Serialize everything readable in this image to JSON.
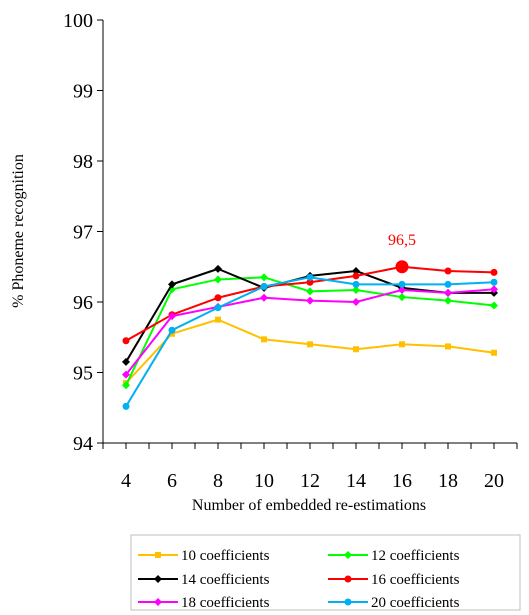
{
  "chart_data": {
    "type": "line",
    "title": "",
    "xlabel": "Number of embedded re-estimations",
    "ylabel": "% Phoneme recognition",
    "x": [
      4,
      6,
      8,
      10,
      12,
      14,
      16,
      18,
      20
    ],
    "xlim": [
      3,
      21
    ],
    "ylim": [
      94,
      100
    ],
    "yticks": [
      94,
      95,
      96,
      97,
      98,
      99,
      100
    ],
    "grid": false,
    "legend_position": "bottom",
    "series": [
      {
        "name": "10 coefficients",
        "color": "#FFC000",
        "values": [
          94.85,
          95.55,
          95.75,
          95.47,
          95.4,
          95.33,
          95.4,
          95.37,
          95.28
        ]
      },
      {
        "name": "12 coefficients",
        "color": "#00FF00",
        "values": [
          94.82,
          96.18,
          96.32,
          96.35,
          96.15,
          96.17,
          96.07,
          96.02,
          95.95
        ]
      },
      {
        "name": "14 coefficients",
        "color": "#000000",
        "values": [
          95.15,
          96.25,
          96.47,
          96.2,
          96.37,
          96.44,
          96.2,
          96.13,
          96.13
        ]
      },
      {
        "name": "16 coefficients",
        "color": "#FF0000",
        "values": [
          95.45,
          95.82,
          96.06,
          96.22,
          96.28,
          96.37,
          96.5,
          96.44,
          96.42
        ]
      },
      {
        "name": "18 coefficients",
        "color": "#FF00FF",
        "values": [
          94.97,
          95.8,
          95.93,
          96.06,
          96.02,
          96.0,
          96.17,
          96.13,
          96.18
        ]
      },
      {
        "name": "20 coefficients",
        "color": "#00B0F0",
        "values": [
          94.52,
          95.6,
          95.92,
          96.22,
          96.35,
          96.25,
          96.25,
          96.25,
          96.28
        ]
      }
    ],
    "annotations": [
      {
        "text": "96,5",
        "x": 16,
        "y": 96.5,
        "color": "#FF0000"
      }
    ]
  }
}
